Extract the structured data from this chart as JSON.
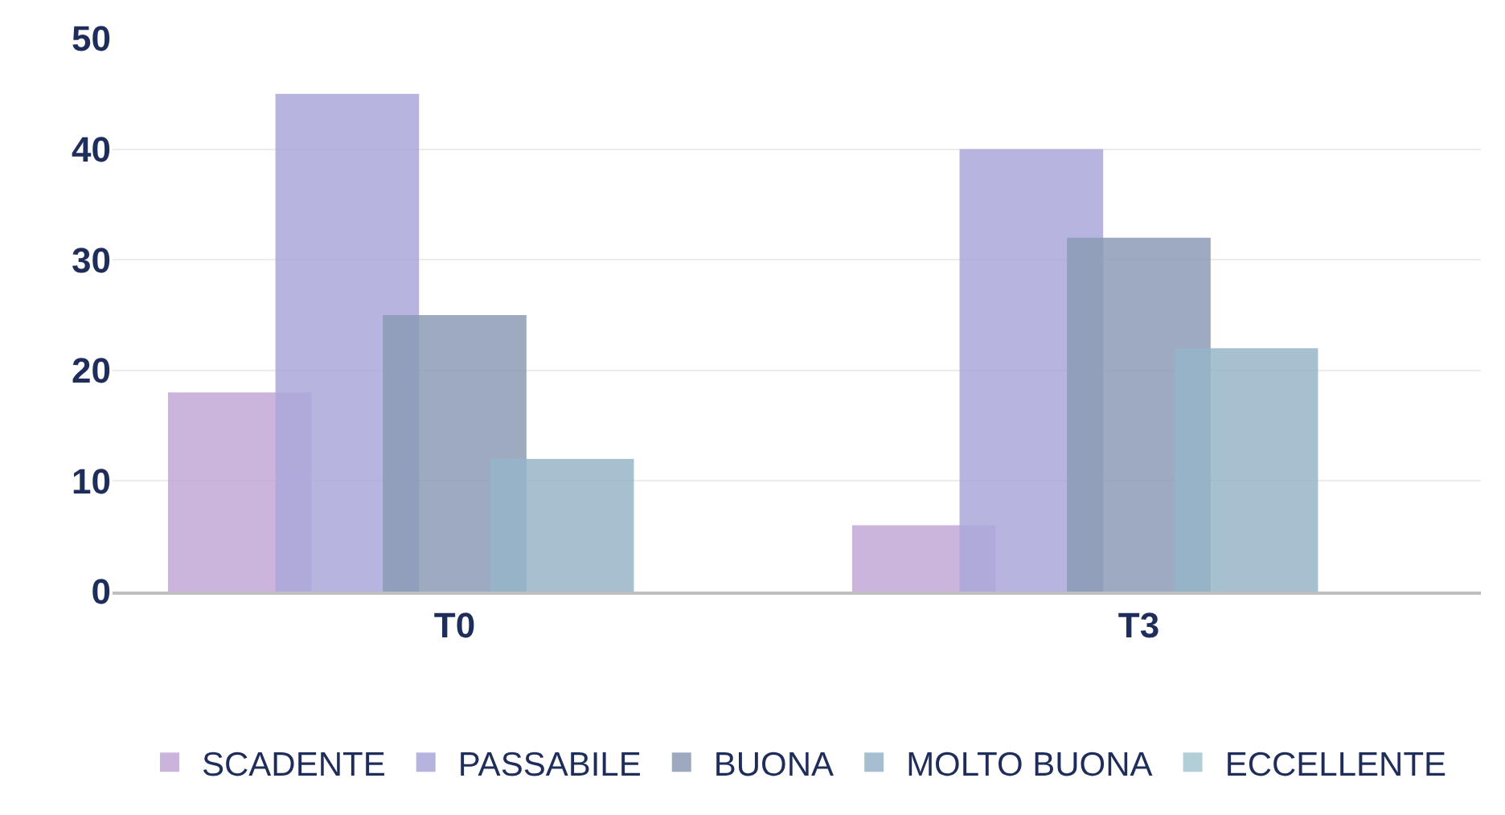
{
  "chart_data": {
    "type": "bar",
    "categories": [
      "T0",
      "T3"
    ],
    "series": [
      {
        "name": "SCADENTE",
        "color": "#c3a8d6",
        "values": [
          18,
          6
        ]
      },
      {
        "name": "PASSABILE",
        "color": "#aaa8da",
        "values": [
          45,
          40
        ]
      },
      {
        "name": "BUONA",
        "color": "#8c9bb5",
        "values": [
          25,
          32
        ]
      },
      {
        "name": "MOLTO BUONA",
        "color": "#96b5c8",
        "values": [
          12,
          22
        ]
      },
      {
        "name": "ECCELLENTE",
        "color": "#a5c6d0",
        "values": [
          0,
          0
        ]
      }
    ],
    "ylim": [
      0,
      50
    ],
    "yticks": [
      0,
      10,
      20,
      30,
      40,
      50
    ],
    "grid": "y",
    "legend": "bottom"
  }
}
